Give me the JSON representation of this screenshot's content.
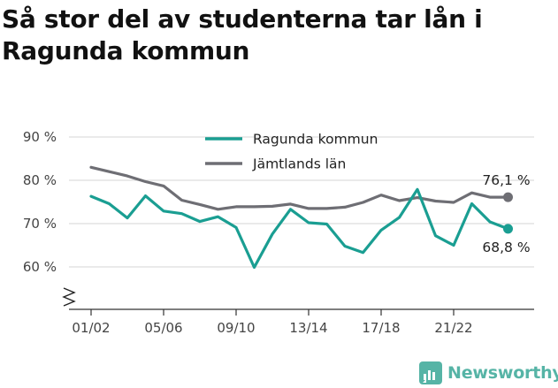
{
  "title": "Så stor del av studenterna tar lån i Ragunda kommun",
  "brand": {
    "name": "Newsworthy"
  },
  "colors": {
    "ragunda": "#1a9e92",
    "jamtland": "#6e6e74",
    "grid": "#d6d6d6",
    "brand": "#56b4a6"
  },
  "chart_data": {
    "type": "line",
    "title": "Så stor del av studenterna tar lån i Ragunda kommun",
    "xlabel": "",
    "ylabel": "",
    "categories": [
      "01/02",
      "02/03",
      "03/04",
      "04/05",
      "05/06",
      "06/07",
      "07/08",
      "08/09",
      "09/10",
      "10/11",
      "11/12",
      "12/13",
      "13/14",
      "14/15",
      "15/16",
      "16/17",
      "17/18",
      "18/19",
      "19/20",
      "20/21",
      "21/22",
      "22/23",
      "23/24",
      "24/25"
    ],
    "x_tick_labels": [
      "01/02",
      "05/06",
      "09/10",
      "13/14",
      "17/18",
      "21/22"
    ],
    "y_ticks": [
      60,
      70,
      80,
      90
    ],
    "y_tick_labels": [
      "60 %",
      "70 %",
      "80 %",
      "90 %"
    ],
    "ylim": [
      50,
      90
    ],
    "axis_break": true,
    "grid": true,
    "legend_position": "top-center",
    "series": [
      {
        "name": "Ragunda kommun",
        "color": "#1a9e92",
        "values": [
          76.3,
          74.6,
          71.3,
          76.4,
          72.9,
          72.3,
          70.5,
          71.6,
          69.1,
          59.9,
          67.6,
          73.3,
          70.2,
          69.9,
          64.8,
          63.3,
          68.5,
          71.4,
          77.9,
          67.2,
          65.0,
          74.6,
          70.4,
          68.8
        ],
        "end_label": "68,8 %"
      },
      {
        "name": "Jämtlands län",
        "color": "#6e6e74",
        "values": [
          83.0,
          82.0,
          81.0,
          79.7,
          78.7,
          75.4,
          74.4,
          73.3,
          73.9,
          73.9,
          74.0,
          74.5,
          73.5,
          73.5,
          73.8,
          74.9,
          76.6,
          75.3,
          76.0,
          75.2,
          74.9,
          77.1,
          76.1,
          76.1
        ],
        "end_label": "76,1 %"
      }
    ]
  }
}
